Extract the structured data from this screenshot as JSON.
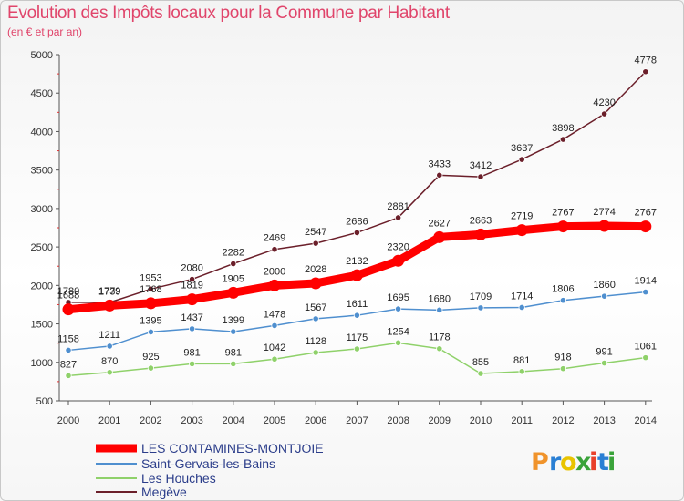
{
  "title": "Evolution des Impôts locaux pour la Commune par Habitant",
  "subtitle": "(en € et par an)",
  "logo": {
    "letters": [
      {
        "ch": "P",
        "color": "#f0932b"
      },
      {
        "ch": "r",
        "color": "#2a7fd4"
      },
      {
        "ch": "o",
        "color": "#e9c400"
      },
      {
        "ch": "x",
        "color": "#3aa33a"
      },
      {
        "ch": "i",
        "color": "#e8402a"
      },
      {
        "ch": "t",
        "color": "#2a7fd4"
      },
      {
        "ch": "i",
        "color": "#3aa33a"
      }
    ]
  },
  "chart_data": {
    "type": "line",
    "title": "Evolution des Impôts locaux pour la Commune par Habitant",
    "subtitle": "(en € et par an)",
    "xlabel": "",
    "ylabel": "",
    "ylim": [
      500,
      5000
    ],
    "yticks": [
      500,
      1000,
      1500,
      2000,
      2500,
      3000,
      3500,
      4000,
      4500,
      5000
    ],
    "x": [
      "2000",
      "2001",
      "2002",
      "2003",
      "2004",
      "2005",
      "2006",
      "2007",
      "2008",
      "2009",
      "2010",
      "2011",
      "2012",
      "2013",
      "2014"
    ],
    "grid": false,
    "legend_position": "bottom-left",
    "series": [
      {
        "name": "LES CONTAMINES-MONTJOIE",
        "color": "#ff0000",
        "values": [
          1688,
          1739,
          1768,
          1819,
          1905,
          2000,
          2028,
          2132,
          2320,
          2627,
          2663,
          2719,
          2767,
          2774,
          2767
        ]
      },
      {
        "name": "Saint-Gervais-les-Bains",
        "color": "#4f8fcf",
        "values": [
          1158,
          1211,
          1395,
          1437,
          1399,
          1478,
          1567,
          1611,
          1695,
          1680,
          1709,
          1714,
          1806,
          1860,
          1914
        ]
      },
      {
        "name": "Les Houches",
        "color": "#8fd16a",
        "values": [
          827,
          870,
          925,
          981,
          981,
          1042,
          1128,
          1175,
          1254,
          1178,
          855,
          881,
          918,
          991,
          1061
        ]
      },
      {
        "name": "Megève",
        "color": "#6b1f2a",
        "values": [
          1780,
          1779,
          1953,
          2080,
          2282,
          2469,
          2547,
          2686,
          2881,
          3433,
          3412,
          3637,
          3898,
          4230,
          4778
        ]
      }
    ]
  }
}
